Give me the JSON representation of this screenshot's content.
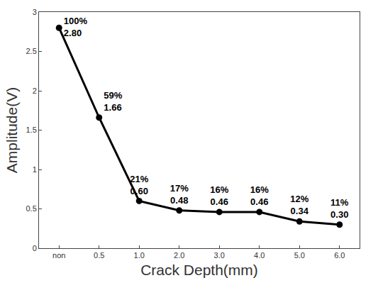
{
  "chart_data": {
    "type": "line",
    "x_label": "Crack Depth(mm)",
    "y_label": "Amplitude(V)",
    "categories": [
      "non",
      "0.5",
      "1.0",
      "2.0",
      "3.0",
      "4.0",
      "5.0",
      "6.0"
    ],
    "values": [
      2.8,
      1.66,
      0.6,
      0.48,
      0.46,
      0.46,
      0.34,
      0.3
    ],
    "value_labels": [
      "100%\n2.80",
      "59%\n1.66",
      "21%\n0.60",
      "17%\n0.48",
      "16%\n0.46",
      "16%\n0.46",
      "12%\n0.34",
      "11%\n0.30"
    ],
    "data_labels": true,
    "color": "#000000",
    "marker": "circle",
    "line_style": "solid",
    "ylim": [
      0,
      3
    ],
    "yticks": [
      0,
      0.5,
      1,
      1.5,
      2,
      2.5,
      3
    ],
    "grid": false
  }
}
